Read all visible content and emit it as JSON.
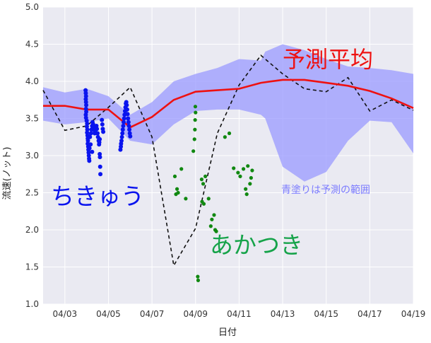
{
  "chart_data": {
    "type": "line",
    "xlabel": "日付",
    "ylabel": "流速(ノット)",
    "ylim": [
      1.0,
      5.0
    ],
    "xlim": [
      "04/02",
      "04/19"
    ],
    "x_ticks": [
      "04/03",
      "04/05",
      "04/07",
      "04/09",
      "04/11",
      "04/13",
      "04/15",
      "04/17",
      "04/19"
    ],
    "y_ticks": [
      "1.0",
      "1.5",
      "2.0",
      "2.5",
      "3.0",
      "3.5",
      "4.0",
      "4.5",
      "5.0"
    ],
    "grid": true,
    "annotations": {
      "forecast_mean": "予測平均",
      "band": "青塗りは予測の範囲",
      "series_blue": "ちきゅう",
      "series_green": "あかつき"
    },
    "colors": {
      "background": "#eaeaf2",
      "grid": "#ffffff",
      "band": "#9999ff",
      "mean": "#ee1111",
      "dashed": "#111111",
      "blue": "#0a14ee",
      "green": "#118811",
      "green_label": "#16a34a"
    },
    "band": {
      "x": [
        2.0,
        3.0,
        4.0,
        5.0,
        6.0,
        7.0,
        8.0,
        9.0,
        10.0,
        11.0,
        12.0,
        12.2,
        13.0,
        14.0,
        15.0,
        16.0,
        17.0,
        18.0,
        19.0
      ],
      "upper": [
        3.92,
        3.85,
        3.9,
        3.8,
        3.55,
        3.72,
        4.0,
        4.1,
        4.18,
        4.3,
        4.28,
        4.4,
        4.5,
        4.42,
        4.3,
        4.2,
        4.18,
        4.15,
        4.1
      ],
      "lower": [
        3.47,
        3.42,
        3.45,
        3.5,
        3.2,
        3.15,
        3.42,
        3.6,
        3.62,
        3.62,
        3.55,
        3.5,
        2.85,
        2.65,
        2.78,
        3.2,
        3.47,
        3.45,
        3.03
      ]
    },
    "mean": {
      "x": [
        2.0,
        3.0,
        4.0,
        5.0,
        6.0,
        7.0,
        8.0,
        9.0,
        10.0,
        11.0,
        12.0,
        13.0,
        14.0,
        15.0,
        16.0,
        17.0,
        18.0,
        19.0
      ],
      "y": [
        3.67,
        3.67,
        3.62,
        3.62,
        3.38,
        3.52,
        3.75,
        3.86,
        3.88,
        3.9,
        3.98,
        4.02,
        4.02,
        3.98,
        3.94,
        3.87,
        3.77,
        3.64
      ]
    },
    "dashed": {
      "x": [
        2.0,
        3.0,
        4.0,
        5.0,
        6.0,
        7.0,
        8.0,
        9.0,
        10.0,
        11.0,
        12.0,
        13.0,
        14.0,
        15.0,
        16.0,
        17.0,
        18.0,
        19.0
      ],
      "y": [
        3.88,
        3.34,
        3.4,
        3.65,
        3.92,
        3.25,
        1.52,
        2.02,
        3.3,
        3.95,
        4.35,
        4.1,
        3.9,
        3.86,
        4.05,
        3.6,
        3.75,
        3.61
      ]
    },
    "blue_points": [
      [
        3.95,
        3.88
      ],
      [
        3.96,
        3.84
      ],
      [
        3.97,
        3.8
      ],
      [
        3.96,
        3.76
      ],
      [
        3.97,
        3.72
      ],
      [
        3.98,
        3.68
      ],
      [
        3.97,
        3.63
      ],
      [
        3.98,
        3.59
      ],
      [
        3.96,
        3.55
      ],
      [
        3.97,
        3.51
      ],
      [
        4.0,
        3.47
      ],
      [
        4.02,
        3.43
      ],
      [
        4.01,
        3.39
      ],
      [
        4.03,
        3.35
      ],
      [
        4.02,
        3.31
      ],
      [
        4.04,
        3.27
      ],
      [
        4.05,
        3.23
      ],
      [
        4.06,
        3.2
      ],
      [
        4.05,
        3.16
      ],
      [
        4.07,
        3.12
      ],
      [
        4.08,
        3.08
      ],
      [
        4.09,
        3.04
      ],
      [
        4.1,
        3.0
      ],
      [
        4.11,
        2.96
      ],
      [
        4.12,
        2.93
      ],
      [
        4.15,
        3.25
      ],
      [
        4.2,
        3.3
      ],
      [
        4.22,
        3.35
      ],
      [
        4.25,
        3.4
      ],
      [
        4.27,
        3.45
      ],
      [
        4.3,
        3.42
      ],
      [
        4.32,
        3.38
      ],
      [
        4.35,
        3.34
      ],
      [
        4.37,
        3.3
      ],
      [
        4.4,
        3.32
      ],
      [
        4.42,
        3.36
      ],
      [
        4.45,
        3.4
      ],
      [
        4.47,
        3.36
      ],
      [
        4.5,
        3.3
      ],
      [
        4.52,
        3.25
      ],
      [
        4.55,
        3.2
      ],
      [
        4.57,
        3.15
      ],
      [
        4.6,
        3.02
      ],
      [
        4.61,
        2.98
      ],
      [
        4.62,
        2.85
      ],
      [
        4.63,
        2.75
      ],
      [
        4.7,
        3.48
      ],
      [
        4.72,
        3.42
      ],
      [
        4.74,
        3.36
      ],
      [
        4.76,
        3.32
      ],
      [
        4.6,
        3.22
      ],
      [
        4.58,
        3.18
      ],
      [
        4.18,
        3.15
      ],
      [
        4.13,
        3.1
      ],
      [
        4.25,
        3.05
      ],
      [
        5.55,
        3.08
      ],
      [
        5.57,
        3.12
      ],
      [
        5.58,
        3.16
      ],
      [
        5.6,
        3.2
      ],
      [
        5.62,
        3.25
      ],
      [
        5.64,
        3.3
      ],
      [
        5.66,
        3.35
      ],
      [
        5.68,
        3.4
      ],
      [
        5.7,
        3.45
      ],
      [
        5.72,
        3.5
      ],
      [
        5.74,
        3.55
      ],
      [
        5.76,
        3.6
      ],
      [
        5.78,
        3.65
      ],
      [
        5.8,
        3.7
      ],
      [
        5.82,
        3.72
      ],
      [
        5.84,
        3.68
      ],
      [
        5.86,
        3.62
      ],
      [
        5.88,
        3.56
      ],
      [
        5.9,
        3.5
      ],
      [
        5.92,
        3.45
      ],
      [
        5.94,
        3.4
      ],
      [
        5.96,
        3.35
      ],
      [
        5.98,
        3.3
      ],
      [
        6.0,
        3.26
      ]
    ],
    "green_points": [
      [
        8.05,
        2.72
      ],
      [
        8.1,
        2.48
      ],
      [
        8.15,
        2.55
      ],
      [
        8.2,
        2.5
      ],
      [
        8.35,
        2.82
      ],
      [
        8.55,
        2.42
      ],
      [
        8.9,
        3.06
      ],
      [
        8.95,
        3.22
      ],
      [
        8.97,
        3.35
      ],
      [
        8.98,
        3.48
      ],
      [
        9.0,
        3.58
      ],
      [
        8.99,
        3.66
      ],
      [
        9.1,
        1.37
      ],
      [
        9.12,
        1.32
      ],
      [
        9.28,
        2.68
      ],
      [
        9.3,
        2.38
      ],
      [
        9.35,
        2.62
      ],
      [
        9.38,
        2.35
      ],
      [
        9.45,
        2.72
      ],
      [
        9.6,
        2.42
      ],
      [
        9.7,
        2.05
      ],
      [
        9.75,
        2.14
      ],
      [
        9.85,
        2.2
      ],
      [
        9.9,
        2.0
      ],
      [
        9.95,
        1.98
      ],
      [
        10.35,
        3.25
      ],
      [
        10.55,
        3.3
      ],
      [
        10.75,
        2.83
      ],
      [
        10.95,
        2.77
      ],
      [
        11.05,
        2.72
      ],
      [
        11.2,
        2.82
      ],
      [
        11.3,
        2.55
      ],
      [
        11.35,
        2.48
      ],
      [
        11.4,
        2.86
      ],
      [
        11.5,
        2.62
      ],
      [
        11.55,
        2.7
      ],
      [
        11.6,
        2.8
      ]
    ]
  }
}
